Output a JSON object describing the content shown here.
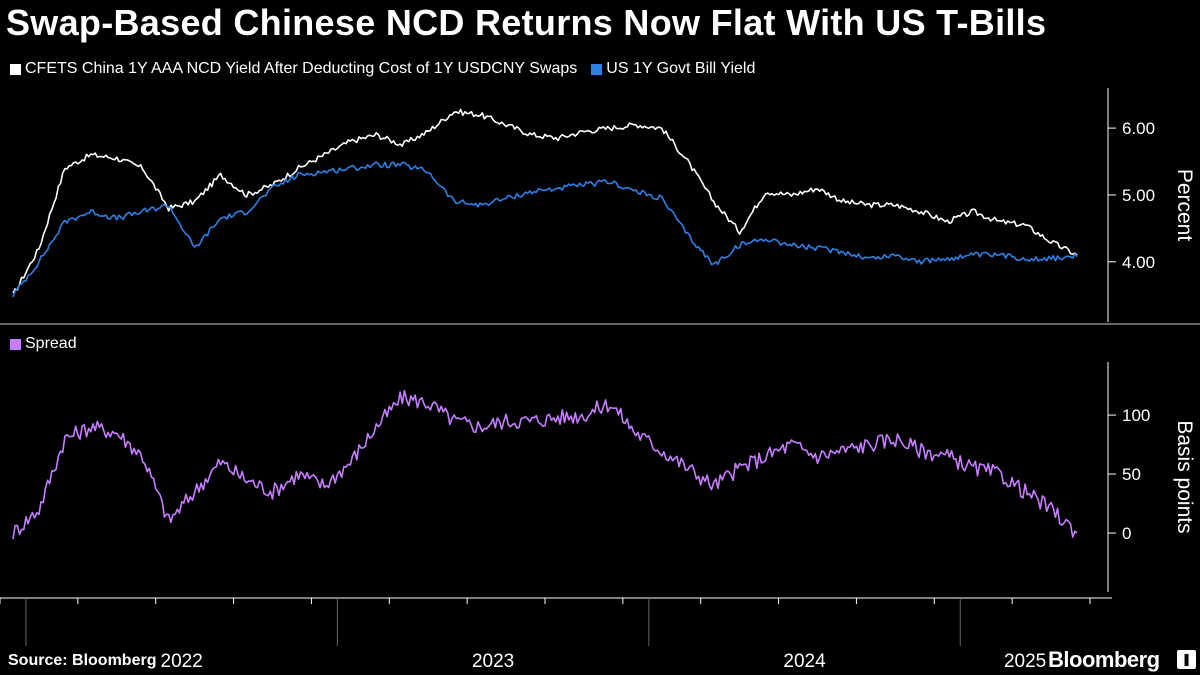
{
  "title": "Swap-Based Chinese NCD Returns Now Flat With US T-Bills",
  "source": "Source: Bloomberg",
  "brand": "Bloomberg",
  "chart_data": [
    {
      "type": "line",
      "title": "",
      "ylabel": "Percent",
      "ylim": [
        3.1,
        6.6
      ],
      "yticks": [
        "4.00",
        "5.00",
        "6.00"
      ],
      "ytick_values": [
        4.0,
        5.0,
        6.0
      ],
      "x_range": [
        "2021-12",
        "2025-06"
      ],
      "legend_position": "top-left",
      "series": [
        {
          "name": "CFETS China 1Y AAA NCD Yield After Deducting Cost of 1Y USDCNY Swaps",
          "color": "#ffffff",
          "x": [
            "2021-12",
            "2022-01",
            "2022-02",
            "2022-03",
            "2022-04",
            "2022-05",
            "2022-06",
            "2022-07",
            "2022-08",
            "2022-09",
            "2022-10",
            "2022-11",
            "2022-12",
            "2023-01",
            "2023-02",
            "2023-03",
            "2023-04",
            "2023-05",
            "2023-06",
            "2023-07",
            "2023-08",
            "2023-09",
            "2023-10",
            "2023-11",
            "2023-12",
            "2024-01",
            "2024-02",
            "2024-03",
            "2024-04",
            "2024-05",
            "2024-06",
            "2024-07",
            "2024-08",
            "2024-09",
            "2024-10",
            "2024-11",
            "2024-12",
            "2025-01",
            "2025-02",
            "2025-03",
            "2025-04",
            "2025-05"
          ],
          "values": [
            3.5,
            4.2,
            5.4,
            5.6,
            5.55,
            5.4,
            4.8,
            4.9,
            5.3,
            5.0,
            5.15,
            5.4,
            5.6,
            5.8,
            5.9,
            5.75,
            5.95,
            6.25,
            6.2,
            6.05,
            5.9,
            5.85,
            5.95,
            6.0,
            6.05,
            6.0,
            5.5,
            4.9,
            4.45,
            5.05,
            5.0,
            5.1,
            4.9,
            4.85,
            4.85,
            4.75,
            4.6,
            4.75,
            4.6,
            4.55,
            4.3,
            4.1
          ]
        },
        {
          "name": "US 1Y Govt Bill Yield",
          "color": "#2f80e6",
          "x": [
            "2021-12",
            "2022-01",
            "2022-02",
            "2022-03",
            "2022-04",
            "2022-05",
            "2022-06",
            "2022-07",
            "2022-08",
            "2022-09",
            "2022-10",
            "2022-11",
            "2022-12",
            "2023-01",
            "2023-02",
            "2023-03",
            "2023-04",
            "2023-05",
            "2023-06",
            "2023-07",
            "2023-08",
            "2023-09",
            "2023-10",
            "2023-11",
            "2023-12",
            "2024-01",
            "2024-02",
            "2024-03",
            "2024-04",
            "2024-05",
            "2024-06",
            "2024-07",
            "2024-08",
            "2024-09",
            "2024-10",
            "2024-11",
            "2024-12",
            "2025-01",
            "2025-02",
            "2025-03",
            "2025-04",
            "2025-05"
          ],
          "values": [
            3.5,
            4.0,
            4.6,
            4.75,
            4.65,
            4.75,
            4.85,
            4.2,
            4.65,
            4.75,
            5.1,
            5.3,
            5.35,
            5.4,
            5.45,
            5.45,
            5.35,
            4.9,
            4.85,
            4.95,
            5.05,
            5.1,
            5.15,
            5.2,
            5.05,
            4.95,
            4.4,
            3.95,
            4.25,
            4.35,
            4.25,
            4.2,
            4.15,
            4.05,
            4.1,
            4.0,
            4.05,
            4.1,
            4.1,
            4.05,
            4.05,
            4.08
          ]
        }
      ]
    },
    {
      "type": "line",
      "title": "",
      "ylabel": "Basis points",
      "ylim": [
        -50,
        145
      ],
      "yticks": [
        "0",
        "50",
        "100"
      ],
      "ytick_values": [
        0,
        50,
        100
      ],
      "x_range": [
        "2021-12",
        "2025-06"
      ],
      "x_ticks": [
        "2022",
        "2023",
        "2024",
        "2025"
      ],
      "legend_position": "top-left",
      "series": [
        {
          "name": "Spread",
          "color": "#c77dff",
          "x": [
            "2021-12",
            "2022-01",
            "2022-02",
            "2022-03",
            "2022-04",
            "2022-05",
            "2022-06",
            "2022-07",
            "2022-08",
            "2022-09",
            "2022-10",
            "2022-11",
            "2022-12",
            "2023-01",
            "2023-02",
            "2023-03",
            "2023-04",
            "2023-05",
            "2023-06",
            "2023-07",
            "2023-08",
            "2023-09",
            "2023-10",
            "2023-11",
            "2023-12",
            "2024-01",
            "2024-02",
            "2024-03",
            "2024-04",
            "2024-05",
            "2024-06",
            "2024-07",
            "2024-08",
            "2024-09",
            "2024-10",
            "2024-11",
            "2024-12",
            "2025-01",
            "2025-02",
            "2025-03",
            "2025-04",
            "2025-05"
          ],
          "values": [
            0,
            20,
            80,
            90,
            85,
            65,
            10,
            35,
            60,
            45,
            35,
            50,
            40,
            60,
            90,
            115,
            110,
            95,
            90,
            95,
            95,
            98,
            100,
            110,
            85,
            70,
            55,
            40,
            55,
            65,
            75,
            65,
            70,
            75,
            80,
            70,
            65,
            55,
            50,
            35,
            20,
            0
          ]
        }
      ]
    }
  ]
}
